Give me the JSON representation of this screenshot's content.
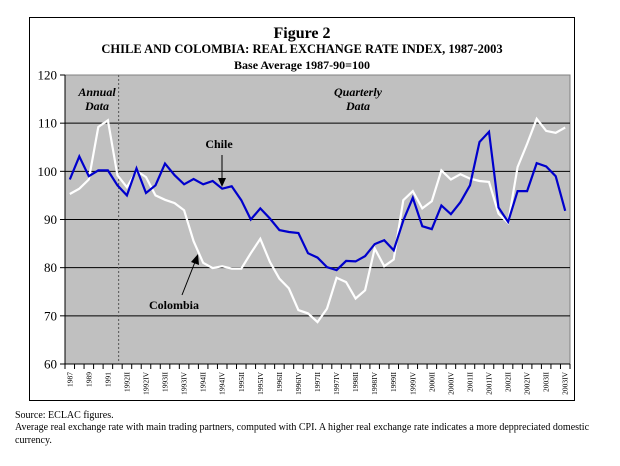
{
  "figure": {
    "number": "Figure 2",
    "subtitle": "CHILE AND COLOMBIA: REAL EXCHANGE RATE INDEX, 1987-2003",
    "base": "Base Average 1987-90=100"
  },
  "notes": {
    "source": "Source: ECLAC figures.",
    "description": "Average real exchange rate with main trading partners, computed with CPI.  A higher real exchange rate indicates a more deppreciated domestic currency."
  },
  "chart_data": {
    "type": "line",
    "title": "CHILE AND COLOMBIA: REAL EXCHANGE RATE INDEX, 1987-2003",
    "subtitle": "Base Average 1987-90=100",
    "xlabel": "",
    "ylabel": "",
    "ylim": [
      60,
      120
    ],
    "yticks": [
      60,
      70,
      80,
      90,
      100,
      110,
      120
    ],
    "grid": "horizontal",
    "background": "#c0c0c0",
    "categories": [
      "1987",
      "1988",
      "1989",
      "1990",
      "1991",
      "1992I",
      "1992II",
      "1992III",
      "1992IV",
      "1993I",
      "1993II",
      "1993III",
      "1993IV",
      "1994I",
      "1994II",
      "1994III",
      "1994IV",
      "1995I",
      "1995II",
      "1995III",
      "1995IV",
      "1996I",
      "1996II",
      "1996III",
      "1996IV",
      "1997I",
      "1997II",
      "1997III",
      "1997IV",
      "1998I",
      "1998II",
      "1998III",
      "1998IV",
      "1999I",
      "1999II",
      "1999III",
      "1999IV",
      "2000I",
      "2000II",
      "2000III",
      "2000IV",
      "2001I",
      "2001II",
      "2001III",
      "2001IV",
      "2002I",
      "2002II",
      "2002III",
      "2002IV",
      "2003I",
      "2003II",
      "2003III",
      "2003IV"
    ],
    "tick_labels": [
      "1987",
      "1989",
      "1991",
      "1992II",
      "1992IV",
      "1993II",
      "1993IV",
      "1994II",
      "1994IV",
      "1995II",
      "1995IV",
      "1996II",
      "1996IV",
      "1997II",
      "1997IV",
      "1998II",
      "1998IV",
      "1999II",
      "1999IV",
      "2000II",
      "2000IV",
      "2001II",
      "2001IV",
      "2002II",
      "2002IV",
      "2003II",
      "2003IV"
    ],
    "series": [
      {
        "name": "Chile",
        "color": "#0000cc",
        "values": [
          98.3,
          103.1,
          99.0,
          100.2,
          100.2,
          97.1,
          95.0,
          100.6,
          95.5,
          97.1,
          101.6,
          99.2,
          97.3,
          98.4,
          97.3,
          98.0,
          96.4,
          96.9,
          94.0,
          90.0,
          92.3,
          90.2,
          87.8,
          87.4,
          87.2,
          83.0,
          82.1,
          80.1,
          79.5,
          81.4,
          81.3,
          82.4,
          84.9,
          85.7,
          83.6,
          89.8,
          94.5,
          88.6,
          88.0,
          92.9,
          91.1,
          93.6,
          97.1,
          106.1,
          108.2,
          92.5,
          89.5,
          95.9,
          95.9,
          101.7,
          101.0,
          99.0,
          91.8
        ]
      },
      {
        "name": "Colombia",
        "color": "#ffffff",
        "values": [
          95.3,
          96.4,
          98.3,
          109.2,
          110.6,
          99.2,
          96.7,
          100.1,
          98.8,
          95.0,
          94.1,
          93.4,
          91.9,
          85.5,
          81.0,
          79.9,
          80.3,
          79.8,
          79.8,
          83.0,
          86.0,
          81.2,
          77.7,
          75.7,
          71.2,
          70.5,
          68.7,
          71.5,
          77.9,
          77.0,
          73.6,
          75.3,
          84.0,
          80.3,
          81.7,
          94.0,
          95.9,
          92.3,
          93.8,
          100.2,
          98.3,
          99.4,
          98.5,
          98.0,
          97.8,
          91.2,
          89.3,
          100.9,
          105.7,
          110.9,
          108.4,
          108.0,
          109.1
        ]
      }
    ],
    "annotations": {
      "annual_line1": "Annual",
      "annual_line2": "Data",
      "quarterly_line1": "Quarterly",
      "quarterly_line2": "Data",
      "chile_label": "Chile",
      "colombia_label": "Colombia"
    },
    "divider_after_category": "1991"
  }
}
